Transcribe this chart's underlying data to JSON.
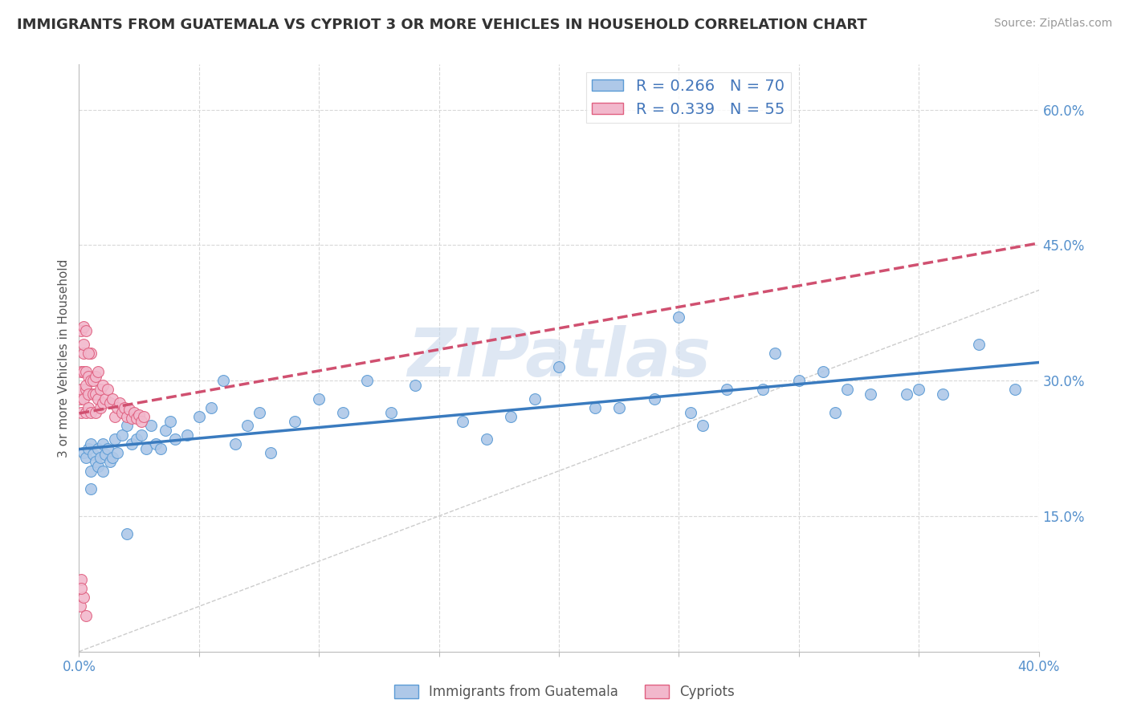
{
  "title": "IMMIGRANTS FROM GUATEMALA VS CYPRIOT 3 OR MORE VEHICLES IN HOUSEHOLD CORRELATION CHART",
  "source": "Source: ZipAtlas.com",
  "ylabel": "3 or more Vehicles in Household",
  "xlim": [
    0.0,
    0.4
  ],
  "ylim": [
    0.0,
    0.65
  ],
  "ytick_positions": [
    0.15,
    0.3,
    0.45,
    0.6
  ],
  "ytick_labels": [
    "15.0%",
    "30.0%",
    "45.0%",
    "60.0%"
  ],
  "xtick_positions": [
    0.0,
    0.05,
    0.1,
    0.15,
    0.2,
    0.25,
    0.3,
    0.35,
    0.4
  ],
  "blue_R": 0.266,
  "blue_N": 70,
  "pink_R": 0.339,
  "pink_N": 55,
  "blue_color": "#aec8e8",
  "pink_color": "#f2b8cc",
  "blue_edge_color": "#5b9bd5",
  "pink_edge_color": "#e06080",
  "blue_line_color": "#3a7bbf",
  "pink_line_color": "#d05070",
  "grid_color": "#d8d8d8",
  "watermark": "ZIPatlas",
  "watermark_color": "#c8d8ec",
  "legend_label_blue": "Immigrants from Guatemala",
  "legend_label_pink": "Cypriots",
  "blue_x": [
    0.002,
    0.003,
    0.004,
    0.005,
    0.005,
    0.006,
    0.007,
    0.008,
    0.008,
    0.009,
    0.01,
    0.01,
    0.011,
    0.012,
    0.013,
    0.014,
    0.015,
    0.016,
    0.018,
    0.02,
    0.022,
    0.024,
    0.026,
    0.028,
    0.03,
    0.032,
    0.034,
    0.036,
    0.038,
    0.04,
    0.045,
    0.05,
    0.055,
    0.06,
    0.065,
    0.07,
    0.075,
    0.08,
    0.09,
    0.1,
    0.11,
    0.12,
    0.13,
    0.14,
    0.16,
    0.17,
    0.18,
    0.19,
    0.2,
    0.215,
    0.225,
    0.24,
    0.255,
    0.27,
    0.285,
    0.3,
    0.315,
    0.33,
    0.345,
    0.36,
    0.375,
    0.39,
    0.25,
    0.26,
    0.29,
    0.31,
    0.32,
    0.35,
    0.005,
    0.02
  ],
  "blue_y": [
    0.22,
    0.215,
    0.225,
    0.2,
    0.23,
    0.218,
    0.21,
    0.225,
    0.205,
    0.215,
    0.2,
    0.23,
    0.218,
    0.225,
    0.21,
    0.215,
    0.235,
    0.22,
    0.24,
    0.25,
    0.23,
    0.235,
    0.24,
    0.225,
    0.25,
    0.23,
    0.225,
    0.245,
    0.255,
    0.235,
    0.24,
    0.26,
    0.27,
    0.3,
    0.23,
    0.25,
    0.265,
    0.22,
    0.255,
    0.28,
    0.265,
    0.3,
    0.265,
    0.295,
    0.255,
    0.235,
    0.26,
    0.28,
    0.315,
    0.27,
    0.27,
    0.28,
    0.265,
    0.29,
    0.29,
    0.3,
    0.265,
    0.285,
    0.285,
    0.285,
    0.34,
    0.29,
    0.37,
    0.25,
    0.33,
    0.31,
    0.29,
    0.29,
    0.18,
    0.13
  ],
  "pink_x": [
    0.0005,
    0.001,
    0.001,
    0.001,
    0.002,
    0.002,
    0.002,
    0.003,
    0.003,
    0.003,
    0.003,
    0.004,
    0.004,
    0.004,
    0.005,
    0.005,
    0.005,
    0.006,
    0.006,
    0.007,
    0.007,
    0.007,
    0.008,
    0.008,
    0.009,
    0.009,
    0.01,
    0.01,
    0.011,
    0.012,
    0.013,
    0.014,
    0.015,
    0.016,
    0.017,
    0.018,
    0.019,
    0.02,
    0.021,
    0.022,
    0.023,
    0.024,
    0.025,
    0.026,
    0.027,
    0.001,
    0.002,
    0.002,
    0.003,
    0.004,
    0.0005,
    0.001,
    0.002,
    0.001,
    0.003
  ],
  "pink_y": [
    0.28,
    0.29,
    0.31,
    0.265,
    0.28,
    0.31,
    0.33,
    0.29,
    0.31,
    0.265,
    0.295,
    0.285,
    0.305,
    0.27,
    0.3,
    0.265,
    0.33,
    0.285,
    0.3,
    0.265,
    0.285,
    0.305,
    0.28,
    0.31,
    0.27,
    0.29,
    0.295,
    0.275,
    0.28,
    0.29,
    0.275,
    0.28,
    0.26,
    0.27,
    0.275,
    0.265,
    0.27,
    0.26,
    0.268,
    0.258,
    0.265,
    0.258,
    0.262,
    0.255,
    0.26,
    0.355,
    0.34,
    0.36,
    0.355,
    0.33,
    0.05,
    0.08,
    0.06,
    0.07,
    0.04
  ]
}
